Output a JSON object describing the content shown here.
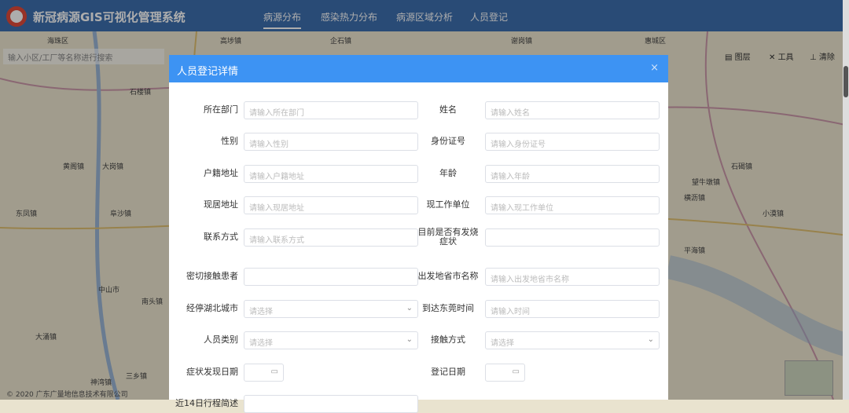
{
  "header": {
    "title": "新冠病源GIS可视化管理系统",
    "nav": [
      "病源分布",
      "感染热力分布",
      "病源区域分析",
      "人员登记"
    ],
    "active": "病源分布"
  },
  "map": {
    "search_placeholder": "输入小区/工厂等名称进行搜索",
    "tools": [
      "图层",
      "工具",
      "清除"
    ],
    "copyright": "© 2020 广东广量地信息技术有限公司",
    "labels": [
      "海珠区",
      "高埗镇",
      "企石镇",
      "谢岗镇",
      "惠城区",
      "石楼镇",
      "大岗镇",
      "黄阁镇",
      "东凤镇",
      "阜沙镇",
      "中山市",
      "南头镇",
      "大涌镇",
      "石碣镇",
      "望牛墩镇",
      "横沥镇",
      "小漠镇",
      "三乡镇",
      "神湾镇",
      "平海镇"
    ]
  },
  "modal": {
    "title": "人员登记详情",
    "close": "×",
    "left": [
      {
        "label": "所在部门",
        "placeholder": "请输入所在部门",
        "type": "input"
      },
      {
        "label": "性别",
        "placeholder": "请输入性别",
        "type": "input"
      },
      {
        "label": "户籍地址",
        "placeholder": "请输入户籍地址",
        "type": "input"
      },
      {
        "label": "现居地址",
        "placeholder": "请输入现居地址",
        "type": "input"
      },
      {
        "label": "联系方式",
        "placeholder": "请输入联系方式",
        "type": "input"
      },
      {
        "label": "密切接触患者",
        "placeholder": "",
        "type": "input"
      },
      {
        "label": "经停湖北城市",
        "placeholder": "请选择",
        "type": "select"
      },
      {
        "label": "人员类别",
        "placeholder": "请选择",
        "type": "select"
      },
      {
        "label": "症状发现日期",
        "placeholder": "",
        "type": "date"
      },
      {
        "label": "近14日行程简述",
        "placeholder": "",
        "type": "input"
      }
    ],
    "right": [
      {
        "label": "姓名",
        "placeholder": "请输入姓名",
        "type": "input"
      },
      {
        "label": "身份证号",
        "placeholder": "请输入身份证号",
        "type": "input"
      },
      {
        "label": "年龄",
        "placeholder": "请输入年龄",
        "type": "input"
      },
      {
        "label": "现工作单位",
        "placeholder": "请输入现工作单位",
        "type": "input"
      },
      {
        "label": "目前是否有发烧症状",
        "placeholder": "",
        "type": "input"
      },
      {
        "label": "出发地省市名称",
        "placeholder": "请输入出发地省市名称",
        "type": "input"
      },
      {
        "label": "到达东莞时间",
        "placeholder": "请输入时间",
        "type": "input"
      },
      {
        "label": "接触方式",
        "placeholder": "请选择",
        "type": "select"
      },
      {
        "label": "登记日期",
        "placeholder": "",
        "type": "date"
      }
    ]
  }
}
